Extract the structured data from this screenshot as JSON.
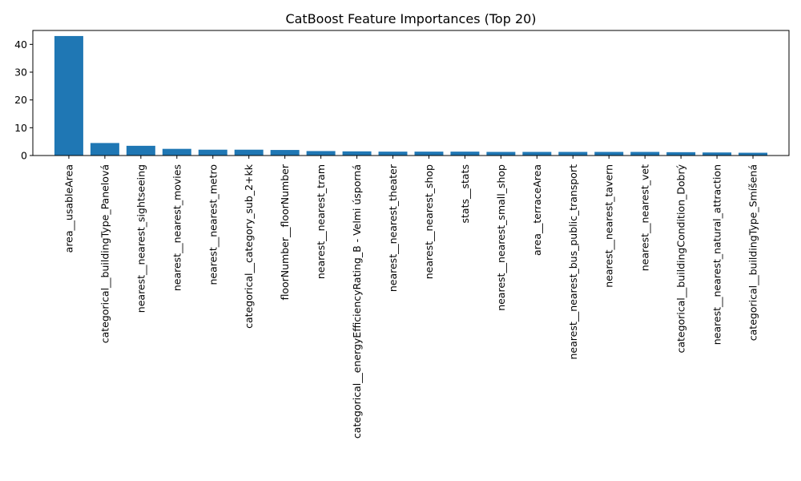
{
  "chart_data": {
    "type": "bar",
    "title": "CatBoost Feature Importances (Top 20)",
    "xlabel": "",
    "ylabel": "",
    "ylim": [
      0,
      45
    ],
    "yticks": [
      0,
      10,
      20,
      30,
      40
    ],
    "grid": false,
    "bar_color": "#1f77b4",
    "categories": [
      "area__usableArea",
      "categorical__buildingType_Panelová",
      "nearest__nearest_sightseeing",
      "nearest__nearest_movies",
      "nearest__nearest_metro",
      "categorical__category_sub_2+kk",
      "floorNumber__floorNumber",
      "nearest__nearest_tram",
      "categorical__energyEfficiencyRating_B - Velmi úsporná",
      "nearest__nearest_theater",
      "nearest__nearest_shop",
      "stats__stats",
      "nearest__nearest_small_shop",
      "area__terraceArea",
      "nearest__nearest_bus_public_transport",
      "nearest__nearest_tavern",
      "nearest__nearest_vet",
      "categorical__buildingCondition_Dobrý",
      "nearest__nearest_natural_attraction",
      "categorical__buildingType_Smíšená"
    ],
    "values": [
      43.0,
      4.5,
      3.5,
      2.4,
      2.1,
      2.1,
      2.0,
      1.6,
      1.5,
      1.4,
      1.4,
      1.4,
      1.3,
      1.3,
      1.3,
      1.3,
      1.3,
      1.2,
      1.1,
      1.0
    ]
  }
}
